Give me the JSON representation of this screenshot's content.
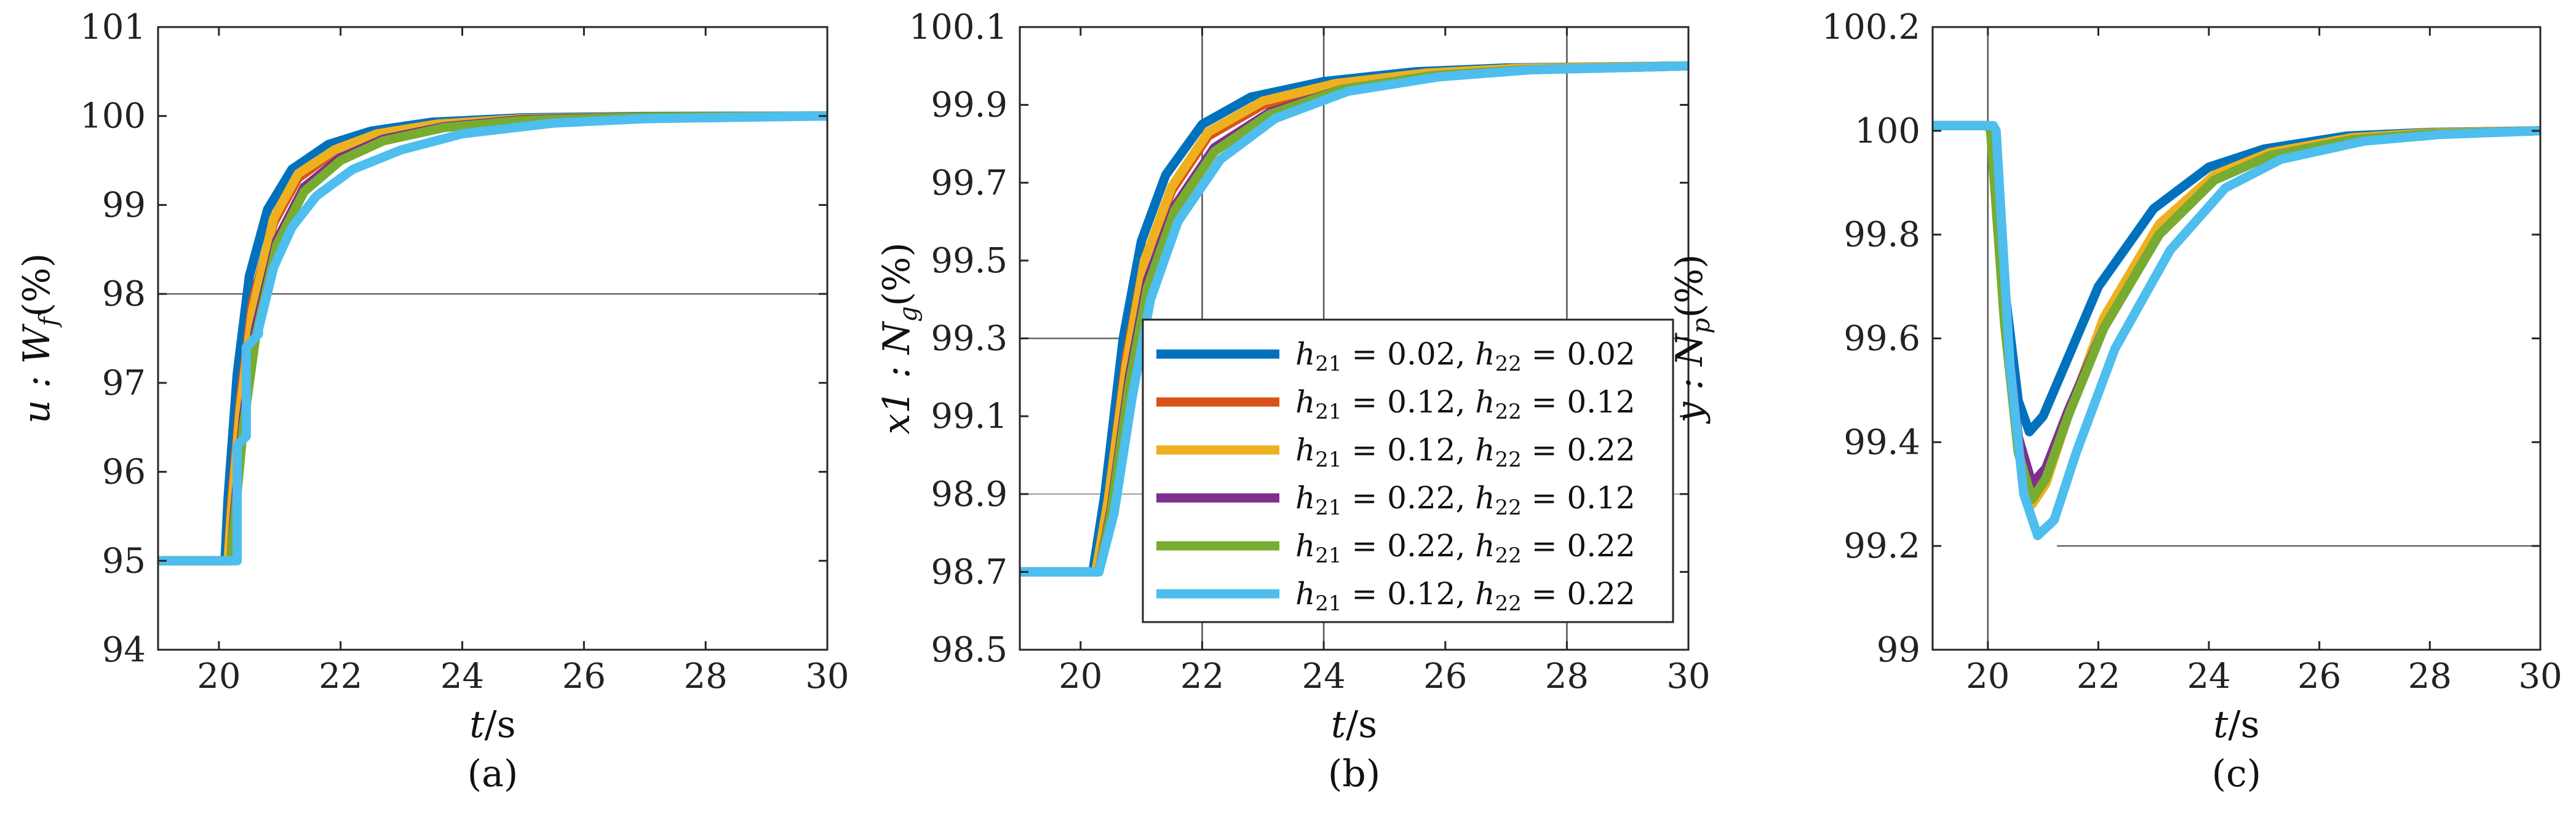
{
  "colors": {
    "c1": "#0072BD",
    "c2": "#D95319",
    "c3": "#EDB120",
    "c4": "#7E2F8E",
    "c5": "#77AC30",
    "c6": "#4DBEEE"
  },
  "legend": {
    "items": [
      {
        "label": "h21 = 0.02, h22 = 0.02",
        "color": "#0072BD"
      },
      {
        "label": "h21 = 0.12, h22 = 0.12",
        "color": "#D95319"
      },
      {
        "label": "h21 = 0.12, h22 = 0.22",
        "color": "#EDB120"
      },
      {
        "label": "h21 = 0.22, h22 = 0.12",
        "color": "#7E2F8E"
      },
      {
        "label": "h21 = 0.22, h22 = 0.22",
        "color": "#77AC30"
      },
      {
        "label": "h21 = 0.12, h22 = 0.22",
        "color": "#4DBEEE"
      }
    ]
  },
  "chart_data": [
    {
      "type": "line",
      "panel": "a",
      "caption": "(a)",
      "xlabel": "t/s",
      "ylabel": "u : Wf(%)",
      "xlim": [
        19,
        30
      ],
      "ylim": [
        94,
        101
      ],
      "xticks": [
        "20",
        "22",
        "24",
        "26",
        "28",
        "30"
      ],
      "yticks": [
        "94",
        "95",
        "96",
        "97",
        "98",
        "99",
        "100",
        "101"
      ],
      "reference_lines": {
        "horizontal": [
          98
        ],
        "vertical": []
      },
      "series": [
        {
          "name": "h21 = 0.02, h22 = 0.02",
          "x": [
            19,
            20.1,
            20.15,
            20.3,
            20.5,
            20.8,
            21.2,
            21.8,
            22.5,
            23.5,
            25,
            27,
            30
          ],
          "y": [
            95,
            95,
            95.7,
            97.1,
            98.2,
            98.95,
            99.4,
            99.68,
            99.83,
            99.93,
            99.98,
            99.995,
            100
          ]
        },
        {
          "name": "h21 = 0.12, h22 = 0.12",
          "x": [
            19,
            20.15,
            20.2,
            20.35,
            20.55,
            20.9,
            21.3,
            21.9,
            22.6,
            23.6,
            25,
            27,
            30
          ],
          "y": [
            95,
            95,
            95.6,
            96.8,
            97.9,
            98.8,
            99.3,
            99.6,
            99.78,
            99.9,
            99.97,
            99.99,
            100
          ]
        },
        {
          "name": "h21 = 0.12, h22 = 0.22",
          "x": [
            19,
            20.15,
            20.2,
            20.35,
            20.55,
            20.9,
            21.3,
            21.9,
            22.6,
            23.6,
            25,
            27,
            30
          ],
          "y": [
            95,
            95,
            95.5,
            96.7,
            97.8,
            98.85,
            99.35,
            99.62,
            99.8,
            99.91,
            99.97,
            99.99,
            100
          ]
        },
        {
          "name": "h21 = 0.22, h22 = 0.12",
          "x": [
            19,
            20.2,
            20.25,
            20.4,
            20.6,
            20.95,
            21.4,
            22,
            22.7,
            23.7,
            25,
            27,
            30
          ],
          "y": [
            95,
            95,
            95.5,
            96.6,
            97.6,
            98.6,
            99.2,
            99.53,
            99.74,
            99.88,
            99.96,
            99.99,
            100
          ]
        },
        {
          "name": "h21 = 0.22, h22 = 0.22",
          "x": [
            19,
            20.2,
            20.25,
            20.4,
            20.6,
            20.95,
            21.4,
            22,
            22.7,
            23.7,
            25,
            27,
            30
          ],
          "y": [
            95,
            95,
            95.4,
            96.5,
            97.5,
            98.55,
            99.15,
            99.5,
            99.72,
            99.87,
            99.95,
            99.99,
            100
          ]
        },
        {
          "name": "h21 = 0.12, h22 = 0.22",
          "x": [
            19,
            20.3,
            20.3,
            20.45,
            20.45,
            20.65,
            20.65,
            20.9,
            21.2,
            21.6,
            22.2,
            23,
            24,
            25.5,
            27,
            30
          ],
          "y": [
            95,
            95,
            96.3,
            96.4,
            97.4,
            97.55,
            97.6,
            98.3,
            98.75,
            99.1,
            99.4,
            99.62,
            99.8,
            99.92,
            99.97,
            100
          ]
        }
      ]
    },
    {
      "type": "line",
      "panel": "b",
      "caption": "(b)",
      "xlabel": "t/s",
      "ylabel": "x1 : Ng(%)",
      "xlim": [
        19,
        30
      ],
      "ylim": [
        98.5,
        100.1
      ],
      "xticks": [
        "20",
        "22",
        "24",
        "26",
        "28",
        "30"
      ],
      "yticks": [
        "98.5",
        "98.7",
        "98.9",
        "99.1",
        "99.3",
        "99.5",
        "99.7",
        "99.9",
        "100.1"
      ],
      "reference_lines": {
        "horizontal": [
          99.3,
          98.9
        ],
        "vertical": [
          22,
          24,
          28
        ]
      },
      "series": [
        {
          "name": "h21 = 0.02, h22 = 0.02",
          "x": [
            19,
            20.2,
            20.4,
            20.7,
            21,
            21.4,
            22,
            22.8,
            24,
            25.5,
            27,
            30
          ],
          "y": [
            98.7,
            98.7,
            98.9,
            99.3,
            99.55,
            99.72,
            99.85,
            99.92,
            99.96,
            99.985,
            99.995,
            100
          ]
        },
        {
          "name": "h21 = 0.12, h22 = 0.12",
          "x": [
            19,
            20.25,
            20.45,
            20.75,
            21.05,
            21.5,
            22.1,
            23,
            24.2,
            25.7,
            27.2,
            30
          ],
          "y": [
            98.7,
            98.7,
            98.88,
            99.25,
            99.5,
            99.68,
            99.82,
            99.9,
            99.95,
            99.98,
            99.993,
            100
          ]
        },
        {
          "name": "h21 = 0.12, h22 = 0.22",
          "x": [
            19,
            20.25,
            20.45,
            20.75,
            21.05,
            21.5,
            22.1,
            23,
            24.2,
            25.7,
            27.2,
            30
          ],
          "y": [
            98.7,
            98.7,
            98.88,
            99.23,
            99.5,
            99.69,
            99.83,
            99.91,
            99.955,
            99.982,
            99.994,
            100
          ]
        },
        {
          "name": "h21 = 0.22, h22 = 0.12",
          "x": [
            19,
            20.3,
            20.5,
            20.8,
            21.1,
            21.55,
            22.2,
            23.1,
            24.3,
            25.8,
            27.3,
            30
          ],
          "y": [
            98.7,
            98.7,
            98.86,
            99.2,
            99.45,
            99.64,
            99.79,
            99.88,
            99.94,
            99.975,
            99.99,
            100
          ]
        },
        {
          "name": "h21 = 0.22, h22 = 0.22",
          "x": [
            19,
            20.3,
            20.5,
            20.8,
            21.1,
            21.55,
            22.2,
            23.1,
            24.3,
            25.8,
            27.3,
            30
          ],
          "y": [
            98.7,
            98.7,
            98.85,
            99.18,
            99.43,
            99.63,
            99.78,
            99.875,
            99.94,
            99.975,
            99.99,
            100
          ]
        },
        {
          "name": "h21 = 0.12, h22 = 0.22",
          "x": [
            19,
            20.3,
            20.55,
            20.85,
            21.15,
            21.6,
            22.3,
            23.2,
            24.4,
            25.9,
            27.4,
            30
          ],
          "y": [
            98.7,
            98.7,
            98.85,
            99.15,
            99.4,
            99.6,
            99.76,
            99.865,
            99.935,
            99.972,
            99.99,
            100
          ]
        }
      ]
    },
    {
      "type": "line",
      "panel": "c",
      "caption": "(c)",
      "xlabel": "t/s",
      "ylabel": "y : Np(%)",
      "xlim": [
        19,
        30
      ],
      "ylim": [
        99,
        100.2
      ],
      "xticks": [
        "20",
        "22",
        "24",
        "26",
        "28",
        "30"
      ],
      "yticks": [
        "99",
        "99.2",
        "99.4",
        "99.6",
        "99.8",
        "100",
        "100.2"
      ],
      "reference_lines": {
        "horizontal": [
          99.2
        ],
        "vertical": [
          20
        ]
      },
      "series": [
        {
          "name": "h21 = 0.02, h22 = 0.02",
          "x": [
            19,
            20,
            20.05,
            20.3,
            20.55,
            20.75,
            21,
            21.4,
            22,
            23,
            24,
            25,
            26.5,
            28,
            30
          ],
          "y": [
            100.01,
            100.01,
            100,
            99.7,
            99.48,
            99.42,
            99.45,
            99.55,
            99.7,
            99.85,
            99.93,
            99.965,
            99.99,
            99.997,
            100
          ]
        },
        {
          "name": "h21 = 0.12, h22 = 0.12",
          "x": [
            19,
            20,
            20.05,
            20.3,
            20.55,
            20.8,
            21.05,
            21.45,
            22.1,
            23.1,
            24.1,
            25.1,
            26.6,
            28,
            30
          ],
          "y": [
            100.01,
            100.01,
            100,
            99.65,
            99.4,
            99.3,
            99.33,
            99.45,
            99.63,
            99.81,
            99.91,
            99.955,
            99.985,
            99.995,
            100
          ]
        },
        {
          "name": "h21 = 0.12, h22 = 0.22",
          "x": [
            19,
            20,
            20.05,
            20.3,
            20.55,
            20.8,
            21.05,
            21.45,
            22.1,
            23.1,
            24.1,
            25.1,
            26.6,
            28,
            30
          ],
          "y": [
            100.01,
            100.01,
            100,
            99.64,
            99.38,
            99.28,
            99.32,
            99.45,
            99.64,
            99.82,
            99.915,
            99.958,
            99.987,
            99.996,
            100
          ]
        },
        {
          "name": "h21 = 0.22, h22 = 0.12",
          "x": [
            19,
            20,
            20.05,
            20.3,
            20.55,
            20.8,
            21.05,
            21.45,
            22.1,
            23.1,
            24.1,
            25.1,
            26.6,
            28,
            30
          ],
          "y": [
            100.01,
            100.01,
            100,
            99.65,
            99.41,
            99.32,
            99.35,
            99.46,
            99.62,
            99.8,
            99.905,
            99.952,
            99.983,
            99.994,
            100
          ]
        },
        {
          "name": "h21 = 0.22, h22 = 0.22",
          "x": [
            19,
            20,
            20.05,
            20.3,
            20.55,
            20.8,
            21.05,
            21.45,
            22.1,
            23.1,
            24.1,
            25.1,
            26.6,
            28,
            30
          ],
          "y": [
            100.01,
            100.01,
            100,
            99.63,
            99.38,
            99.29,
            99.33,
            99.45,
            99.62,
            99.8,
            99.905,
            99.952,
            99.983,
            99.994,
            100
          ]
        },
        {
          "name": "h21 = 0.12, h22 = 0.22",
          "x": [
            19,
            20.1,
            20.15,
            20.4,
            20.65,
            20.9,
            21.2,
            21.6,
            22.3,
            23.3,
            24.3,
            25.3,
            26.8,
            28.2,
            30
          ],
          "y": [
            100.01,
            100.01,
            100,
            99.55,
            99.3,
            99.22,
            99.25,
            99.38,
            99.58,
            99.77,
            99.89,
            99.945,
            99.98,
            99.993,
            100
          ]
        }
      ]
    }
  ]
}
